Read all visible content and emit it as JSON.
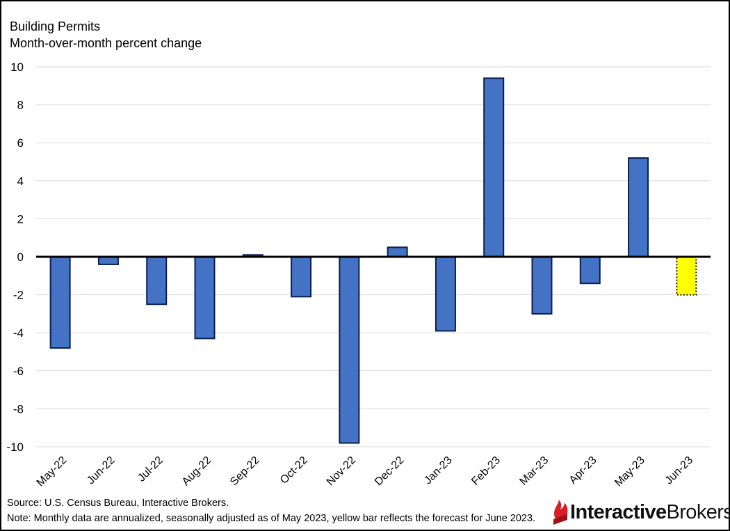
{
  "title_lines": [
    "Building Permits",
    "Month-over-month percent change"
  ],
  "footer": {
    "source": "Source: U.S. Census Bureau, Interactive Brokers.",
    "note": "Note: Monthly data are annualized, seasonally adjusted as of May 2023, yellow bar reflects the forecast for June 2023."
  },
  "logo": {
    "part1": "Interactive",
    "part2": "Brokers"
  },
  "colors": {
    "bar": "#4472C4",
    "bar_border": "#0B1F4F",
    "forecast": "#FFFF00",
    "grid": "#D9D9D9"
  },
  "chart_data": {
    "type": "bar",
    "title": "Building Permits",
    "subtitle": "Month-over-month percent change",
    "xlabel": "",
    "ylabel": "",
    "categories": [
      "May-22",
      "Jun-22",
      "Jul-22",
      "Aug-22",
      "Sep-22",
      "Oct-22",
      "Nov-22",
      "Dec-22",
      "Jan-23",
      "Feb-23",
      "Mar-23",
      "Apr-23",
      "May-23",
      "Jun-23"
    ],
    "values": [
      -4.8,
      -0.4,
      -2.5,
      -4.3,
      0.1,
      -2.1,
      -9.8,
      0.5,
      -3.9,
      9.4,
      -3.0,
      -1.4,
      5.2,
      -2.0
    ],
    "forecast": [
      false,
      false,
      false,
      false,
      false,
      false,
      false,
      false,
      false,
      false,
      false,
      false,
      false,
      true
    ],
    "ylim": [
      -10,
      10
    ],
    "yticks": [
      10,
      8,
      6,
      4,
      2,
      0,
      -2,
      -4,
      -6,
      -8,
      -10
    ],
    "grid": true,
    "legend": "none"
  }
}
